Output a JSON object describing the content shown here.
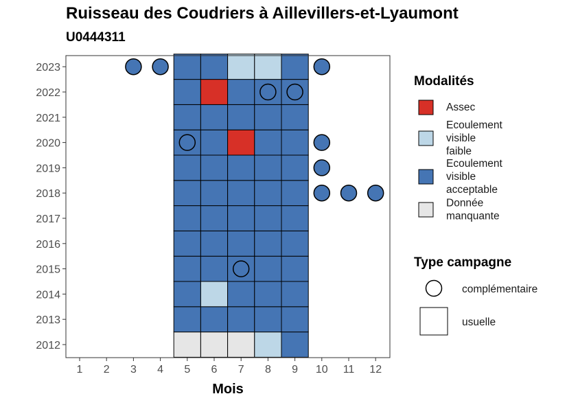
{
  "title": "Ruisseau des Coudriers à Aillevillers-et-Lyaumont",
  "subtitle": "U0444311",
  "chart_data": {
    "type": "heatmap",
    "xlabel": "Mois",
    "ylabel": "",
    "x_ticks": [
      "1",
      "2",
      "3",
      "4",
      "5",
      "6",
      "7",
      "8",
      "9",
      "10",
      "11",
      "12"
    ],
    "y_ticks": [
      "2012",
      "2013",
      "2014",
      "2015",
      "2016",
      "2017",
      "2018",
      "2019",
      "2020",
      "2021",
      "2022",
      "2023"
    ],
    "legend_modalites": {
      "title": "Modalités",
      "items": [
        {
          "key": "assec",
          "label_lines": [
            "Assec"
          ],
          "color": "#d73027"
        },
        {
          "key": "faible",
          "label_lines": [
            "Ecoulement",
            "visible",
            "faible"
          ],
          "color": "#bdd7e7"
        },
        {
          "key": "acceptable",
          "label_lines": [
            "Ecoulement",
            "visible",
            "acceptable"
          ],
          "color": "#4575b4"
        },
        {
          "key": "manquante",
          "label_lines": [
            "Donnée",
            "manquante"
          ],
          "color": "#e6e6e6"
        }
      ]
    },
    "legend_campagne": {
      "title": "Type campagne",
      "items": [
        {
          "key": "complementaire",
          "label": "complémentaire",
          "shape": "circle"
        },
        {
          "key": "usuelle",
          "label": "usuelle",
          "shape": "square"
        }
      ]
    },
    "cells": [
      {
        "year": 2012,
        "month": 5,
        "value": "manquante",
        "campagne": "usuelle"
      },
      {
        "year": 2012,
        "month": 6,
        "value": "manquante",
        "campagne": "usuelle"
      },
      {
        "year": 2012,
        "month": 7,
        "value": "manquante",
        "campagne": "usuelle"
      },
      {
        "year": 2012,
        "month": 8,
        "value": "faible",
        "campagne": "usuelle"
      },
      {
        "year": 2012,
        "month": 9,
        "value": "acceptable",
        "campagne": "usuelle"
      },
      {
        "year": 2013,
        "month": 5,
        "value": "acceptable",
        "campagne": "usuelle"
      },
      {
        "year": 2013,
        "month": 6,
        "value": "acceptable",
        "campagne": "usuelle"
      },
      {
        "year": 2013,
        "month": 7,
        "value": "acceptable",
        "campagne": "usuelle"
      },
      {
        "year": 2013,
        "month": 8,
        "value": "acceptable",
        "campagne": "usuelle"
      },
      {
        "year": 2013,
        "month": 9,
        "value": "acceptable",
        "campagne": "usuelle"
      },
      {
        "year": 2014,
        "month": 5,
        "value": "acceptable",
        "campagne": "usuelle"
      },
      {
        "year": 2014,
        "month": 6,
        "value": "faible",
        "campagne": "usuelle"
      },
      {
        "year": 2014,
        "month": 7,
        "value": "acceptable",
        "campagne": "usuelle"
      },
      {
        "year": 2014,
        "month": 8,
        "value": "acceptable",
        "campagne": "usuelle"
      },
      {
        "year": 2014,
        "month": 9,
        "value": "acceptable",
        "campagne": "usuelle"
      },
      {
        "year": 2015,
        "month": 5,
        "value": "acceptable",
        "campagne": "usuelle"
      },
      {
        "year": 2015,
        "month": 6,
        "value": "acceptable",
        "campagne": "usuelle"
      },
      {
        "year": 2015,
        "month": 7,
        "value": "acceptable",
        "campagne": "complementaire"
      },
      {
        "year": 2015,
        "month": 7,
        "value": "acceptable",
        "campagne": "usuelle"
      },
      {
        "year": 2015,
        "month": 8,
        "value": "acceptable",
        "campagne": "usuelle"
      },
      {
        "year": 2015,
        "month": 9,
        "value": "acceptable",
        "campagne": "usuelle"
      },
      {
        "year": 2016,
        "month": 5,
        "value": "acceptable",
        "campagne": "usuelle"
      },
      {
        "year": 2016,
        "month": 6,
        "value": "acceptable",
        "campagne": "usuelle"
      },
      {
        "year": 2016,
        "month": 7,
        "value": "acceptable",
        "campagne": "usuelle"
      },
      {
        "year": 2016,
        "month": 8,
        "value": "acceptable",
        "campagne": "usuelle"
      },
      {
        "year": 2016,
        "month": 9,
        "value": "acceptable",
        "campagne": "usuelle"
      },
      {
        "year": 2017,
        "month": 5,
        "value": "acceptable",
        "campagne": "usuelle"
      },
      {
        "year": 2017,
        "month": 6,
        "value": "acceptable",
        "campagne": "usuelle"
      },
      {
        "year": 2017,
        "month": 7,
        "value": "acceptable",
        "campagne": "usuelle"
      },
      {
        "year": 2017,
        "month": 8,
        "value": "acceptable",
        "campagne": "usuelle"
      },
      {
        "year": 2017,
        "month": 9,
        "value": "acceptable",
        "campagne": "usuelle"
      },
      {
        "year": 2018,
        "month": 5,
        "value": "acceptable",
        "campagne": "usuelle"
      },
      {
        "year": 2018,
        "month": 6,
        "value": "acceptable",
        "campagne": "usuelle"
      },
      {
        "year": 2018,
        "month": 7,
        "value": "acceptable",
        "campagne": "usuelle"
      },
      {
        "year": 2018,
        "month": 8,
        "value": "acceptable",
        "campagne": "usuelle"
      },
      {
        "year": 2018,
        "month": 9,
        "value": "acceptable",
        "campagne": "usuelle"
      },
      {
        "year": 2018,
        "month": 10,
        "value": "acceptable",
        "campagne": "complementaire"
      },
      {
        "year": 2018,
        "month": 11,
        "value": "acceptable",
        "campagne": "complementaire"
      },
      {
        "year": 2018,
        "month": 12,
        "value": "acceptable",
        "campagne": "complementaire"
      },
      {
        "year": 2019,
        "month": 5,
        "value": "acceptable",
        "campagne": "usuelle"
      },
      {
        "year": 2019,
        "month": 6,
        "value": "acceptable",
        "campagne": "usuelle"
      },
      {
        "year": 2019,
        "month": 7,
        "value": "acceptable",
        "campagne": "usuelle"
      },
      {
        "year": 2019,
        "month": 8,
        "value": "acceptable",
        "campagne": "usuelle"
      },
      {
        "year": 2019,
        "month": 9,
        "value": "acceptable",
        "campagne": "usuelle"
      },
      {
        "year": 2019,
        "month": 10,
        "value": "acceptable",
        "campagne": "complementaire"
      },
      {
        "year": 2020,
        "month": 5,
        "value": "acceptable",
        "campagne": "usuelle"
      },
      {
        "year": 2020,
        "month": 5,
        "value": "acceptable",
        "campagne": "complementaire"
      },
      {
        "year": 2020,
        "month": 6,
        "value": "acceptable",
        "campagne": "usuelle"
      },
      {
        "year": 2020,
        "month": 7,
        "value": "assec",
        "campagne": "usuelle"
      },
      {
        "year": 2020,
        "month": 8,
        "value": "acceptable",
        "campagne": "usuelle"
      },
      {
        "year": 2020,
        "month": 9,
        "value": "acceptable",
        "campagne": "usuelle"
      },
      {
        "year": 2020,
        "month": 10,
        "value": "acceptable",
        "campagne": "complementaire"
      },
      {
        "year": 2021,
        "month": 5,
        "value": "acceptable",
        "campagne": "usuelle"
      },
      {
        "year": 2021,
        "month": 6,
        "value": "acceptable",
        "campagne": "usuelle"
      },
      {
        "year": 2021,
        "month": 7,
        "value": "acceptable",
        "campagne": "usuelle"
      },
      {
        "year": 2021,
        "month": 8,
        "value": "acceptable",
        "campagne": "usuelle"
      },
      {
        "year": 2021,
        "month": 9,
        "value": "acceptable",
        "campagne": "usuelle"
      },
      {
        "year": 2022,
        "month": 5,
        "value": "acceptable",
        "campagne": "usuelle"
      },
      {
        "year": 2022,
        "month": 6,
        "value": "assec",
        "campagne": "usuelle"
      },
      {
        "year": 2022,
        "month": 7,
        "value": "acceptable",
        "campagne": "usuelle"
      },
      {
        "year": 2022,
        "month": 8,
        "value": "acceptable",
        "campagne": "usuelle"
      },
      {
        "year": 2022,
        "month": 8,
        "value": "acceptable",
        "campagne": "complementaire"
      },
      {
        "year": 2022,
        "month": 9,
        "value": "acceptable",
        "campagne": "usuelle"
      },
      {
        "year": 2022,
        "month": 9,
        "value": "acceptable",
        "campagne": "complementaire"
      },
      {
        "year": 2023,
        "month": 3,
        "value": "acceptable",
        "campagne": "complementaire"
      },
      {
        "year": 2023,
        "month": 4,
        "value": "acceptable",
        "campagne": "complementaire"
      },
      {
        "year": 2023,
        "month": 5,
        "value": "acceptable",
        "campagne": "usuelle"
      },
      {
        "year": 2023,
        "month": 6,
        "value": "acceptable",
        "campagne": "usuelle"
      },
      {
        "year": 2023,
        "month": 7,
        "value": "faible",
        "campagne": "usuelle"
      },
      {
        "year": 2023,
        "month": 8,
        "value": "faible",
        "campagne": "usuelle"
      },
      {
        "year": 2023,
        "month": 9,
        "value": "acceptable",
        "campagne": "usuelle"
      },
      {
        "year": 2023,
        "month": 10,
        "value": "acceptable",
        "campagne": "complementaire"
      }
    ]
  }
}
